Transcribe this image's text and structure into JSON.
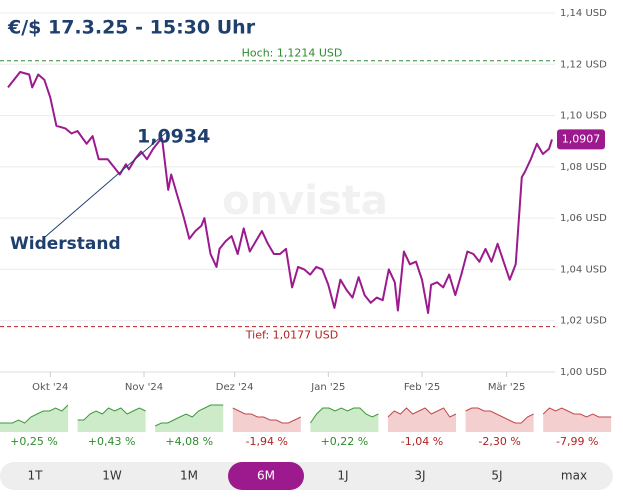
{
  "chart_data": {
    "type": "line",
    "title": "€/$  17.3.25  -  15:30 Uhr",
    "watermark": "onvista",
    "xlim": [
      0,
      181
    ],
    "xticks": [
      {
        "value": 14,
        "label": "Okt '24"
      },
      {
        "value": 45,
        "label": "Nov '24"
      },
      {
        "value": 75,
        "label": "Dez '24"
      },
      {
        "value": 106,
        "label": "Jan '25"
      },
      {
        "value": 137,
        "label": "Feb '25"
      },
      {
        "value": 165,
        "label": "Mär '25"
      }
    ],
    "ylim": [
      1.0,
      1.14
    ],
    "yticks": [
      {
        "value": 1.14,
        "label": "1,14 USD"
      },
      {
        "value": 1.12,
        "label": "1,12 USD"
      },
      {
        "value": 1.1,
        "label": "1,10 USD"
      },
      {
        "value": 1.08,
        "label": "1,08 USD"
      },
      {
        "value": 1.06,
        "label": "1,06 USD"
      },
      {
        "value": 1.04,
        "label": "1,04 USD"
      },
      {
        "value": 1.02,
        "label": "1,02 USD"
      },
      {
        "value": 1.0,
        "label": "1,00 USD"
      }
    ],
    "grid": true,
    "series": [
      {
        "color": "#9c1a8e",
        "x": [
          0,
          2,
          4,
          7,
          8,
          10,
          12,
          14,
          16,
          19,
          21,
          23,
          26,
          28,
          30,
          33,
          35,
          37,
          39,
          40,
          42,
          44,
          46,
          48,
          50,
          51,
          53,
          54,
          56,
          58,
          60,
          62,
          64,
          65,
          67,
          69,
          70,
          72,
          74,
          76,
          78,
          80,
          82,
          84,
          86,
          88,
          90,
          92,
          94,
          96,
          98,
          100,
          102,
          104,
          106,
          108,
          110,
          112,
          114,
          116,
          118,
          120,
          122,
          124,
          126,
          128,
          129,
          131,
          133,
          135,
          137,
          139,
          140,
          142,
          144,
          146,
          148,
          150,
          152,
          154,
          156,
          158,
          160,
          162,
          164,
          166,
          168,
          170,
          171,
          173,
          175,
          177,
          179,
          180
        ],
        "values": [
          1.111,
          1.114,
          1.117,
          1.116,
          1.111,
          1.116,
          1.114,
          1.107,
          1.096,
          1.095,
          1.093,
          1.094,
          1.089,
          1.092,
          1.083,
          1.083,
          1.08,
          1.077,
          1.081,
          1.079,
          1.083,
          1.086,
          1.083,
          1.087,
          1.09,
          1.091,
          1.071,
          1.077,
          1.069,
          1.061,
          1.052,
          1.055,
          1.057,
          1.06,
          1.046,
          1.041,
          1.048,
          1.051,
          1.053,
          1.046,
          1.056,
          1.047,
          1.051,
          1.055,
          1.05,
          1.046,
          1.046,
          1.048,
          1.033,
          1.041,
          1.04,
          1.038,
          1.041,
          1.04,
          1.034,
          1.025,
          1.036,
          1.032,
          1.029,
          1.037,
          1.03,
          1.027,
          1.029,
          1.028,
          1.04,
          1.035,
          1.024,
          1.047,
          1.042,
          1.043,
          1.036,
          1.023,
          1.034,
          1.035,
          1.033,
          1.038,
          1.03,
          1.038,
          1.047,
          1.046,
          1.043,
          1.048,
          1.043,
          1.05,
          1.043,
          1.036,
          1.042,
          1.076,
          1.078,
          1.083,
          1.089,
          1.085,
          1.087,
          1.0907
        ]
      }
    ],
    "high": {
      "value": 1.1214,
      "label": "Hoch: 1,1214 USD",
      "color": "#2e8b2e"
    },
    "low": {
      "value": 1.0177,
      "label": "Tief: 1,0177 USD",
      "color": "#b22222"
    },
    "last": {
      "value": 1.0907,
      "label": "1,0907"
    },
    "annotations": [
      {
        "text": "1,0934",
        "value": 1.0934,
        "x": 51
      },
      {
        "text": "Widerstand"
      }
    ]
  },
  "performance": {
    "ylim": [
      0,
      10
    ],
    "panels": [
      {
        "label": "+0,25 %",
        "color": "green",
        "values": [
          3,
          3,
          3,
          4,
          3,
          5,
          6,
          7,
          7,
          8,
          7,
          9
        ]
      },
      {
        "label": "+0,43 %",
        "color": "green",
        "values": [
          4,
          4,
          6,
          7,
          6,
          8,
          7,
          8,
          6,
          7,
          8,
          7
        ]
      },
      {
        "label": "+4,08 %",
        "color": "green",
        "values": [
          2,
          3,
          3,
          4,
          5,
          6,
          5,
          7,
          8,
          9,
          9,
          9
        ]
      },
      {
        "label": "-1,94 %",
        "color": "red",
        "values": [
          8,
          7,
          6,
          6,
          5,
          5,
          4,
          4,
          3,
          3,
          4,
          5
        ]
      },
      {
        "label": "+0,22 %",
        "color": "green",
        "values": [
          3,
          6,
          8,
          8,
          7,
          8,
          7,
          8,
          8,
          6,
          5,
          6
        ]
      },
      {
        "label": "-1,04 %",
        "color": "red",
        "values": [
          5,
          7,
          6,
          8,
          6,
          7,
          8,
          6,
          7,
          8,
          5,
          6
        ]
      },
      {
        "label": "-2,30 %",
        "color": "red",
        "values": [
          7,
          8,
          8,
          7,
          7,
          6,
          5,
          4,
          3,
          3,
          5,
          6
        ]
      },
      {
        "label": "-7,99 %",
        "color": "red",
        "values": [
          6,
          8,
          7,
          8,
          7,
          6,
          6,
          5,
          6,
          5,
          5,
          5
        ]
      }
    ]
  },
  "periods": {
    "buttons": [
      "1T",
      "1W",
      "1M",
      "6M",
      "1J",
      "3J",
      "5J",
      "max"
    ],
    "active": "6M"
  }
}
